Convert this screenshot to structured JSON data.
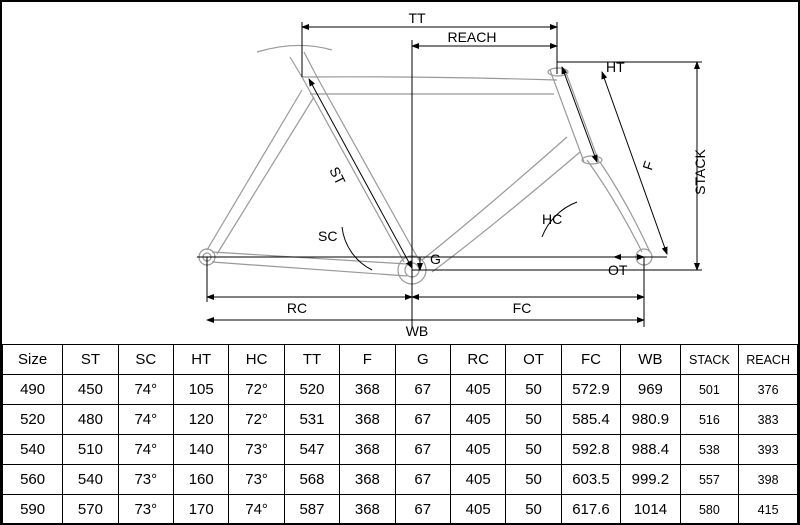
{
  "diagram": {
    "labels": {
      "TT": "TT",
      "REACH": "REACH",
      "HT": "HT",
      "STACK": "STACK",
      "F": "F",
      "ST": "ST",
      "SC": "SC",
      "HC": "HC",
      "G": "G",
      "OT": "OT",
      "RC": "RC",
      "FC": "FC",
      "WB": "WB"
    },
    "line_color": "#000000",
    "frame_color": "#555555",
    "background": "#ffffff"
  },
  "table": {
    "columns": [
      "Size",
      "ST",
      "SC",
      "HT",
      "HC",
      "TT",
      "F",
      "G",
      "RC",
      "OT",
      "FC",
      "WB",
      "STACK",
      "REACH"
    ],
    "small_cols": {
      "12": true,
      "13": true
    },
    "rows": [
      [
        "490",
        "450",
        "74°",
        "105",
        "72°",
        "520",
        "368",
        "67",
        "405",
        "50",
        "572.9",
        "969",
        "501",
        "376"
      ],
      [
        "520",
        "480",
        "74°",
        "120",
        "72°",
        "531",
        "368",
        "67",
        "405",
        "50",
        "585.4",
        "980.9",
        "516",
        "383"
      ],
      [
        "540",
        "510",
        "74°",
        "140",
        "73°",
        "547",
        "368",
        "67",
        "405",
        "50",
        "592.8",
        "988.4",
        "538",
        "393"
      ],
      [
        "560",
        "540",
        "73°",
        "160",
        "73°",
        "568",
        "368",
        "67",
        "405",
        "50",
        "603.5",
        "999.2",
        "557",
        "398"
      ],
      [
        "590",
        "570",
        "73°",
        "170",
        "74°",
        "587",
        "368",
        "67",
        "405",
        "50",
        "617.6",
        "1014",
        "580",
        "415"
      ]
    ],
    "col_widths_pct": [
      7.5,
      6.9,
      6.9,
      6.9,
      6.9,
      6.9,
      6.9,
      6.9,
      6.9,
      6.9,
      7.4,
      7.4,
      7.3,
      7.3
    ]
  }
}
